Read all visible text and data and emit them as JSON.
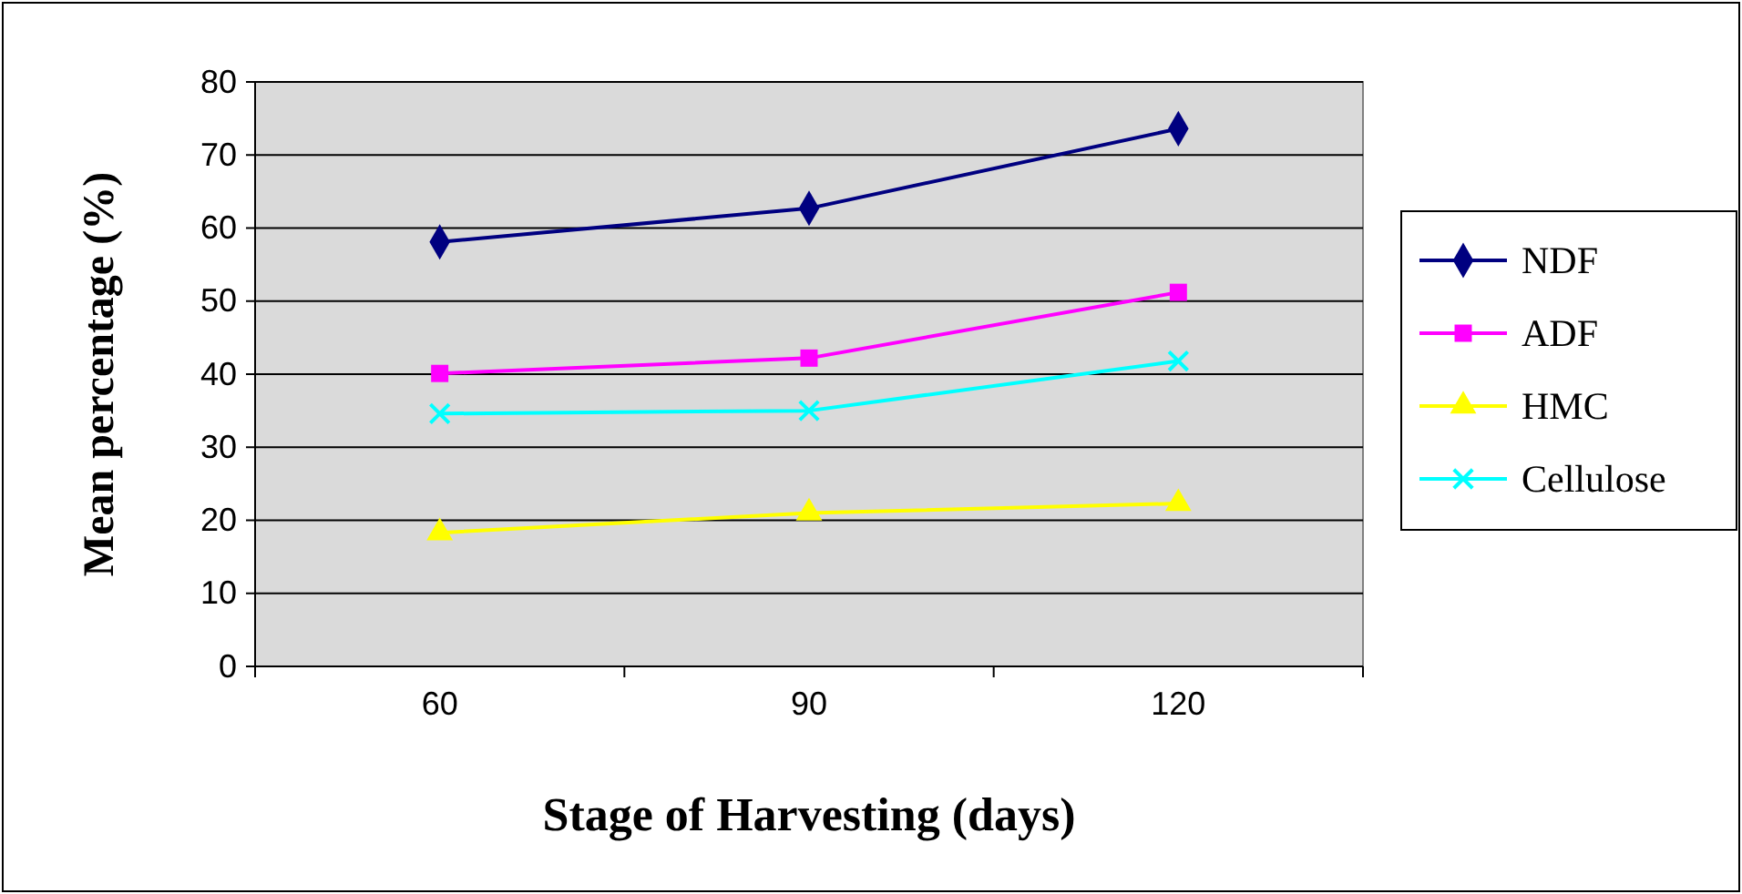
{
  "chart_data": {
    "type": "line",
    "xlabel": "Stage of Harvesting (days)",
    "ylabel": "Mean percentage (%)",
    "categories": [
      "60",
      "90",
      "120"
    ],
    "series": [
      {
        "name": "NDF",
        "color": "#000080",
        "marker": "diamond",
        "values": [
          58.1,
          62.7,
          73.6
        ]
      },
      {
        "name": "ADF",
        "color": "#ff00ff",
        "marker": "square",
        "values": [
          40.1,
          42.2,
          51.2
        ]
      },
      {
        "name": "HMC",
        "color": "#ffff00",
        "marker": "triangle",
        "values": [
          18.3,
          21.0,
          22.3
        ]
      },
      {
        "name": "Cellulose",
        "color": "#00ffff",
        "marker": "cross",
        "values": [
          34.6,
          35.0,
          41.8
        ]
      }
    ],
    "ylim": [
      0,
      80
    ],
    "yticks": [
      0,
      10,
      20,
      30,
      40,
      50,
      60,
      70,
      80
    ],
    "grid": "y",
    "legend": "right"
  }
}
